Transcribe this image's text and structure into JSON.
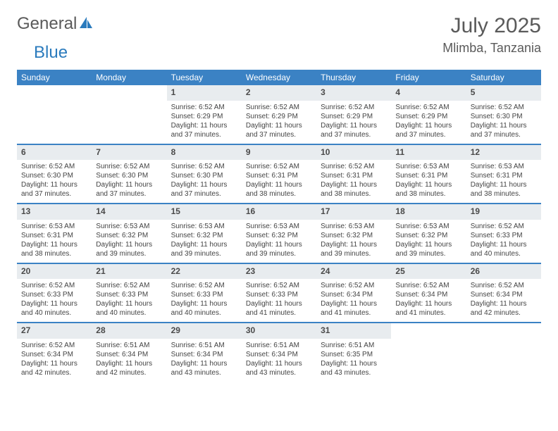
{
  "logo": {
    "part1": "General",
    "part2": "Blue"
  },
  "title": "July 2025",
  "location": "Mlimba, Tanzania",
  "dayNames": [
    "Sunday",
    "Monday",
    "Tuesday",
    "Wednesday",
    "Thursday",
    "Friday",
    "Saturday"
  ],
  "colors": {
    "headerBar": "#3b82c4",
    "dateNumBg": "#e8ecef",
    "rowBorder": "#3b82c4",
    "logoAccent": "#2b7bbd",
    "textGray": "#5a5a5a"
  },
  "firstDayOffset": 2,
  "days": [
    {
      "n": "1",
      "sunrise": "6:52 AM",
      "sunset": "6:29 PM",
      "daylight": "11 hours and 37 minutes."
    },
    {
      "n": "2",
      "sunrise": "6:52 AM",
      "sunset": "6:29 PM",
      "daylight": "11 hours and 37 minutes."
    },
    {
      "n": "3",
      "sunrise": "6:52 AM",
      "sunset": "6:29 PM",
      "daylight": "11 hours and 37 minutes."
    },
    {
      "n": "4",
      "sunrise": "6:52 AM",
      "sunset": "6:29 PM",
      "daylight": "11 hours and 37 minutes."
    },
    {
      "n": "5",
      "sunrise": "6:52 AM",
      "sunset": "6:30 PM",
      "daylight": "11 hours and 37 minutes."
    },
    {
      "n": "6",
      "sunrise": "6:52 AM",
      "sunset": "6:30 PM",
      "daylight": "11 hours and 37 minutes."
    },
    {
      "n": "7",
      "sunrise": "6:52 AM",
      "sunset": "6:30 PM",
      "daylight": "11 hours and 37 minutes."
    },
    {
      "n": "8",
      "sunrise": "6:52 AM",
      "sunset": "6:30 PM",
      "daylight": "11 hours and 37 minutes."
    },
    {
      "n": "9",
      "sunrise": "6:52 AM",
      "sunset": "6:31 PM",
      "daylight": "11 hours and 38 minutes."
    },
    {
      "n": "10",
      "sunrise": "6:52 AM",
      "sunset": "6:31 PM",
      "daylight": "11 hours and 38 minutes."
    },
    {
      "n": "11",
      "sunrise": "6:53 AM",
      "sunset": "6:31 PM",
      "daylight": "11 hours and 38 minutes."
    },
    {
      "n": "12",
      "sunrise": "6:53 AM",
      "sunset": "6:31 PM",
      "daylight": "11 hours and 38 minutes."
    },
    {
      "n": "13",
      "sunrise": "6:53 AM",
      "sunset": "6:31 PM",
      "daylight": "11 hours and 38 minutes."
    },
    {
      "n": "14",
      "sunrise": "6:53 AM",
      "sunset": "6:32 PM",
      "daylight": "11 hours and 39 minutes."
    },
    {
      "n": "15",
      "sunrise": "6:53 AM",
      "sunset": "6:32 PM",
      "daylight": "11 hours and 39 minutes."
    },
    {
      "n": "16",
      "sunrise": "6:53 AM",
      "sunset": "6:32 PM",
      "daylight": "11 hours and 39 minutes."
    },
    {
      "n": "17",
      "sunrise": "6:53 AM",
      "sunset": "6:32 PM",
      "daylight": "11 hours and 39 minutes."
    },
    {
      "n": "18",
      "sunrise": "6:53 AM",
      "sunset": "6:32 PM",
      "daylight": "11 hours and 39 minutes."
    },
    {
      "n": "19",
      "sunrise": "6:52 AM",
      "sunset": "6:33 PM",
      "daylight": "11 hours and 40 minutes."
    },
    {
      "n": "20",
      "sunrise": "6:52 AM",
      "sunset": "6:33 PM",
      "daylight": "11 hours and 40 minutes."
    },
    {
      "n": "21",
      "sunrise": "6:52 AM",
      "sunset": "6:33 PM",
      "daylight": "11 hours and 40 minutes."
    },
    {
      "n": "22",
      "sunrise": "6:52 AM",
      "sunset": "6:33 PM",
      "daylight": "11 hours and 40 minutes."
    },
    {
      "n": "23",
      "sunrise": "6:52 AM",
      "sunset": "6:33 PM",
      "daylight": "11 hours and 41 minutes."
    },
    {
      "n": "24",
      "sunrise": "6:52 AM",
      "sunset": "6:34 PM",
      "daylight": "11 hours and 41 minutes."
    },
    {
      "n": "25",
      "sunrise": "6:52 AM",
      "sunset": "6:34 PM",
      "daylight": "11 hours and 41 minutes."
    },
    {
      "n": "26",
      "sunrise": "6:52 AM",
      "sunset": "6:34 PM",
      "daylight": "11 hours and 42 minutes."
    },
    {
      "n": "27",
      "sunrise": "6:52 AM",
      "sunset": "6:34 PM",
      "daylight": "11 hours and 42 minutes."
    },
    {
      "n": "28",
      "sunrise": "6:51 AM",
      "sunset": "6:34 PM",
      "daylight": "11 hours and 42 minutes."
    },
    {
      "n": "29",
      "sunrise": "6:51 AM",
      "sunset": "6:34 PM",
      "daylight": "11 hours and 43 minutes."
    },
    {
      "n": "30",
      "sunrise": "6:51 AM",
      "sunset": "6:34 PM",
      "daylight": "11 hours and 43 minutes."
    },
    {
      "n": "31",
      "sunrise": "6:51 AM",
      "sunset": "6:35 PM",
      "daylight": "11 hours and 43 minutes."
    }
  ],
  "labels": {
    "sunrise": "Sunrise:",
    "sunset": "Sunset:",
    "daylight": "Daylight:"
  }
}
